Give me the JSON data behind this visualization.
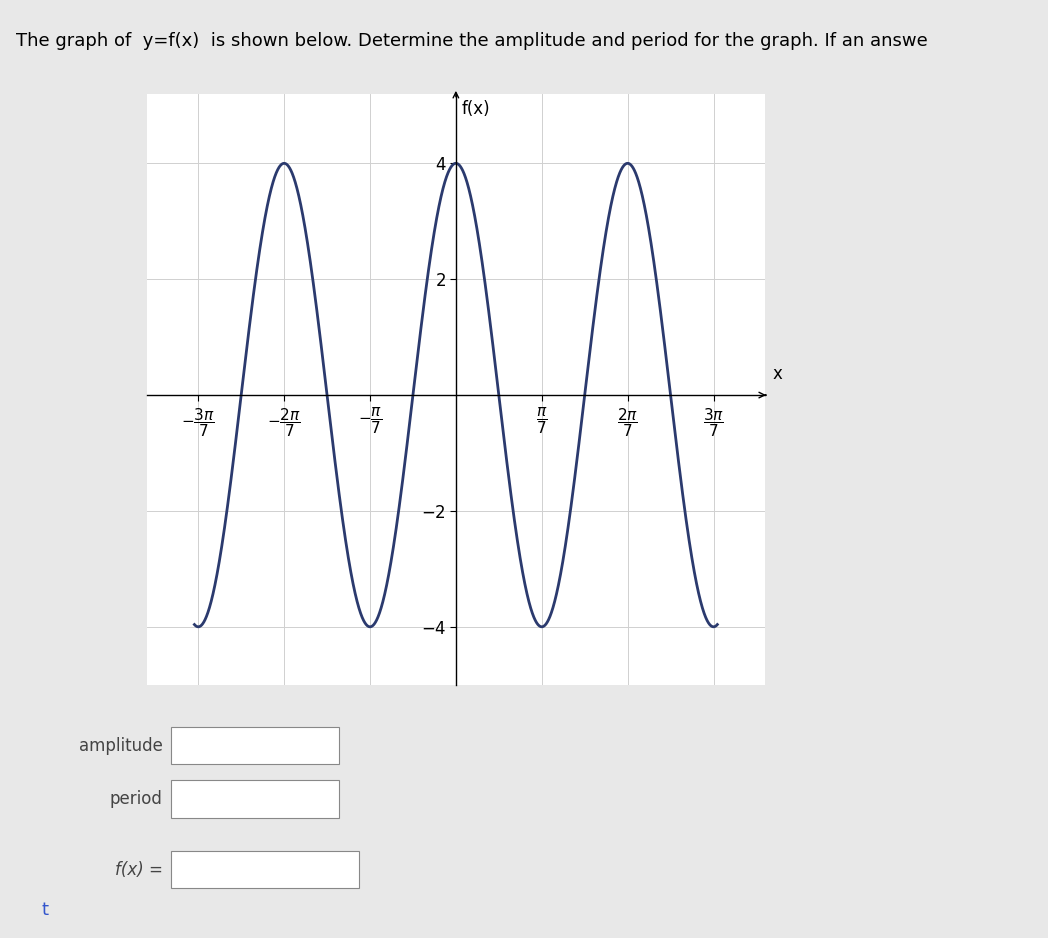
{
  "title": "f(x)",
  "xlabel": "x",
  "amplitude": 4,
  "period_denominator": 7,
  "ylim": [
    -5.0,
    5.2
  ],
  "yticks": [
    -4,
    -2,
    2,
    4
  ],
  "xtick_values": [
    -3,
    -2,
    -1,
    1,
    2,
    3
  ],
  "curve_color": "#2b3a6e",
  "curve_linewidth": 2.0,
  "background_color": "#e8e8e8",
  "plot_bg_color": "#ffffff",
  "grid_color": "#d0d0d0",
  "text_header": "The graph of  y=f(x)  is shown below. Determine the amplitude and period for the graph. If an answe",
  "label_amplitude": "amplitude",
  "label_period": "period",
  "label_fx": "f(x) =",
  "arrow_symbol": "t"
}
